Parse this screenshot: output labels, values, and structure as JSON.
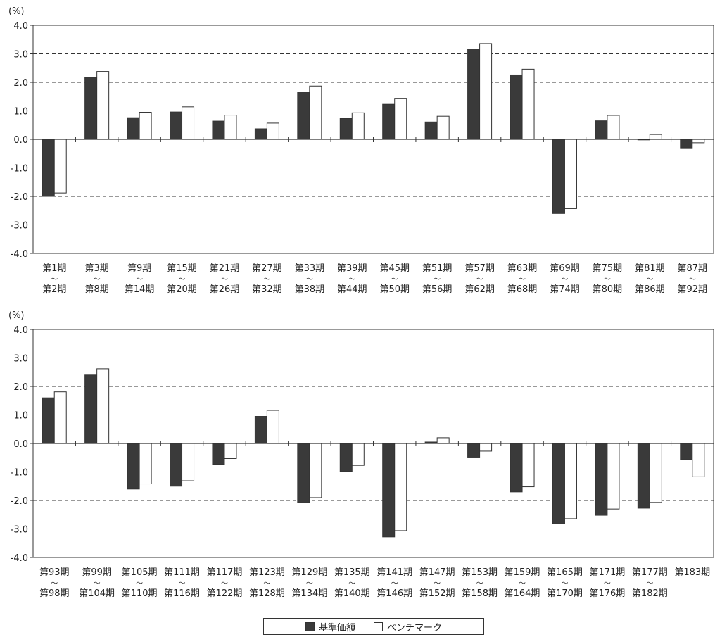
{
  "colors": {
    "nav": "#3a3a3a",
    "benchmark": "#ffffff",
    "stroke": "#333333",
    "grid": "#333333"
  },
  "legend": {
    "nav_label": "基準価額",
    "benchmark_label": "ベンチマーク",
    "placement": "bottom-center"
  },
  "chart_data": [
    {
      "type": "bar",
      "unit_label": "(%)",
      "ylim": [
        -4.0,
        4.0
      ],
      "yticks": [
        "4.0",
        "3.0",
        "2.0",
        "1.0",
        "0.0",
        "-1.0",
        "-2.0",
        "-3.0",
        "-4.0"
      ],
      "grid": "dashed horizontal",
      "categories": [
        {
          "from": "第1期",
          "sep": "〜",
          "to": "第2期"
        },
        {
          "from": "第3期",
          "sep": "〜",
          "to": "第8期"
        },
        {
          "from": "第9期",
          "sep": "〜",
          "to": "第14期"
        },
        {
          "from": "第15期",
          "sep": "〜",
          "to": "第20期"
        },
        {
          "from": "第21期",
          "sep": "〜",
          "to": "第26期"
        },
        {
          "from": "第27期",
          "sep": "〜",
          "to": "第32期"
        },
        {
          "from": "第33期",
          "sep": "〜",
          "to": "第38期"
        },
        {
          "from": "第39期",
          "sep": "〜",
          "to": "第44期"
        },
        {
          "from": "第45期",
          "sep": "〜",
          "to": "第50期"
        },
        {
          "from": "第51期",
          "sep": "〜",
          "to": "第56期"
        },
        {
          "from": "第57期",
          "sep": "〜",
          "to": "第62期"
        },
        {
          "from": "第63期",
          "sep": "〜",
          "to": "第68期"
        },
        {
          "from": "第69期",
          "sep": "〜",
          "to": "第74期"
        },
        {
          "from": "第75期",
          "sep": "〜",
          "to": "第80期"
        },
        {
          "from": "第81期",
          "sep": "〜",
          "to": "第86期"
        },
        {
          "from": "第87期",
          "sep": "〜",
          "to": "第92期"
        }
      ],
      "series": [
        {
          "name": "基準価額",
          "values": [
            -2.0,
            2.18,
            0.76,
            0.96,
            0.64,
            0.37,
            1.66,
            0.73,
            1.23,
            0.61,
            3.17,
            2.26,
            -2.6,
            0.65,
            -0.02,
            -0.3
          ]
        },
        {
          "name": "ベンチマーク",
          "values": [
            -1.88,
            2.38,
            0.95,
            1.14,
            0.85,
            0.57,
            1.87,
            0.93,
            1.44,
            0.81,
            3.36,
            2.46,
            -2.43,
            0.84,
            0.17,
            -0.12
          ]
        }
      ]
    },
    {
      "type": "bar",
      "unit_label": "(%)",
      "ylim": [
        -4.0,
        4.0
      ],
      "yticks": [
        "4.0",
        "3.0",
        "2.0",
        "1.0",
        "0.0",
        "-1.0",
        "-2.0",
        "-3.0",
        "-4.0"
      ],
      "grid": "dashed horizontal",
      "categories": [
        {
          "from": "第93期",
          "sep": "〜",
          "to": "第98期"
        },
        {
          "from": "第99期",
          "sep": "〜",
          "to": "第104期"
        },
        {
          "from": "第105期",
          "sep": "〜",
          "to": "第110期"
        },
        {
          "from": "第111期",
          "sep": "〜",
          "to": "第116期"
        },
        {
          "from": "第117期",
          "sep": "〜",
          "to": "第122期"
        },
        {
          "from": "第123期",
          "sep": "〜",
          "to": "第128期"
        },
        {
          "from": "第129期",
          "sep": "〜",
          "to": "第134期"
        },
        {
          "from": "第135期",
          "sep": "〜",
          "to": "第140期"
        },
        {
          "from": "第141期",
          "sep": "〜",
          "to": "第146期"
        },
        {
          "from": "第147期",
          "sep": "〜",
          "to": "第152期"
        },
        {
          "from": "第153期",
          "sep": "〜",
          "to": "第158期"
        },
        {
          "from": "第159期",
          "sep": "〜",
          "to": "第164期"
        },
        {
          "from": "第165期",
          "sep": "〜",
          "to": "第170期"
        },
        {
          "from": "第171期",
          "sep": "〜",
          "to": "第176期"
        },
        {
          "from": "第177期",
          "sep": "〜",
          "to": "第182期"
        },
        {
          "from": "第183期",
          "sep": "",
          "to": ""
        }
      ],
      "series": [
        {
          "name": "基準価額",
          "values": [
            1.6,
            2.4,
            -1.6,
            -1.5,
            -0.73,
            0.95,
            -2.08,
            -0.98,
            -3.28,
            0.05,
            -0.48,
            -1.7,
            -2.82,
            -2.52,
            -2.27,
            -0.57
          ]
        },
        {
          "name": "ベンチマーク",
          "values": [
            1.81,
            2.62,
            -1.42,
            -1.31,
            -0.53,
            1.16,
            -1.9,
            -0.77,
            -3.06,
            0.2,
            -0.27,
            -1.52,
            -2.64,
            -2.3,
            -2.07,
            -1.17
          ]
        }
      ]
    }
  ]
}
